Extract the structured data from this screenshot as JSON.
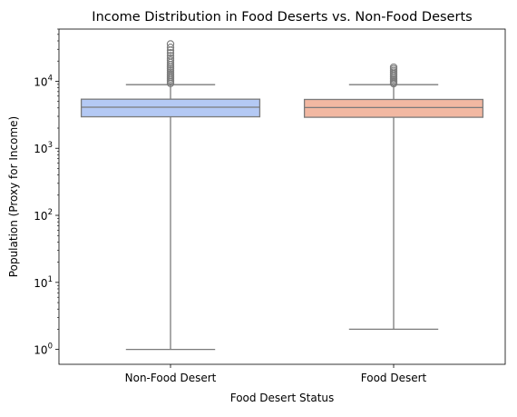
{
  "chart_data": {
    "type": "box",
    "title": "Income Distribution in Food Deserts vs. Non-Food Deserts",
    "xlabel": "Food Desert Status",
    "ylabel": "Population (Proxy for Income)",
    "yscale": "log",
    "ylim": [
      0.6,
      60000
    ],
    "grid": false,
    "yticks": [
      {
        "value": 1,
        "base": "10",
        "exp": "0"
      },
      {
        "value": 10,
        "base": "10",
        "exp": "1"
      },
      {
        "value": 100,
        "base": "10",
        "exp": "2"
      },
      {
        "value": 1000,
        "base": "10",
        "exp": "3"
      },
      {
        "value": 10000,
        "base": "10",
        "exp": "4"
      }
    ],
    "categories": [
      "Non-Food Desert",
      "Food Desert"
    ],
    "colors": [
      "#b4c9f4",
      "#f2b8a2"
    ],
    "boxes": [
      {
        "name": "Non-Food Desert",
        "whisker_low": 1,
        "q1": 2950,
        "median": 4100,
        "q3": 5400,
        "whisker_high": 8900,
        "outliers": [
          9300,
          9800,
          10300,
          10900,
          11500,
          12200,
          12900,
          13700,
          14600,
          15500,
          16500,
          17700,
          19000,
          20500,
          22000,
          24000,
          26500,
          29000,
          32000,
          36000
        ]
      },
      {
        "name": "Food Desert",
        "whisker_low": 2,
        "q1": 2900,
        "median": 4050,
        "q3": 5350,
        "whisker_high": 8900,
        "outliers": [
          9200,
          9600,
          10000,
          10500,
          11000,
          11600,
          12200,
          12900,
          13600,
          14400,
          15300,
          16200
        ]
      }
    ]
  }
}
